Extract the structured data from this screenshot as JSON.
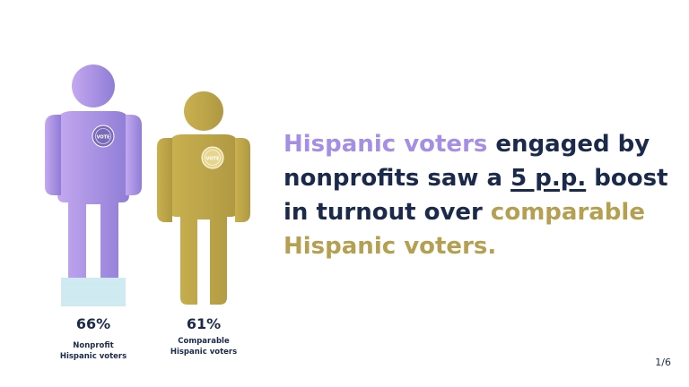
{
  "figures": [
    {
      "percent": "66%",
      "caption_line1": "Nonprofit",
      "caption_line2": "Hispanic voters",
      "badge": "VOTE",
      "color": "#a48ee6"
    },
    {
      "percent": "61%",
      "caption_line1": "Comparable",
      "caption_line2": "Hispanic voters",
      "badge": "VOTE",
      "color": "#c2ab4a"
    }
  ],
  "headline": {
    "part1": "Hispanic voters",
    "part2": " engaged by nonprofits saw a ",
    "part3": "5 p.p.",
    "part4": " boost in turnout over ",
    "part5": "comparable Hispanic voters."
  },
  "page_indicator": "1/6"
}
